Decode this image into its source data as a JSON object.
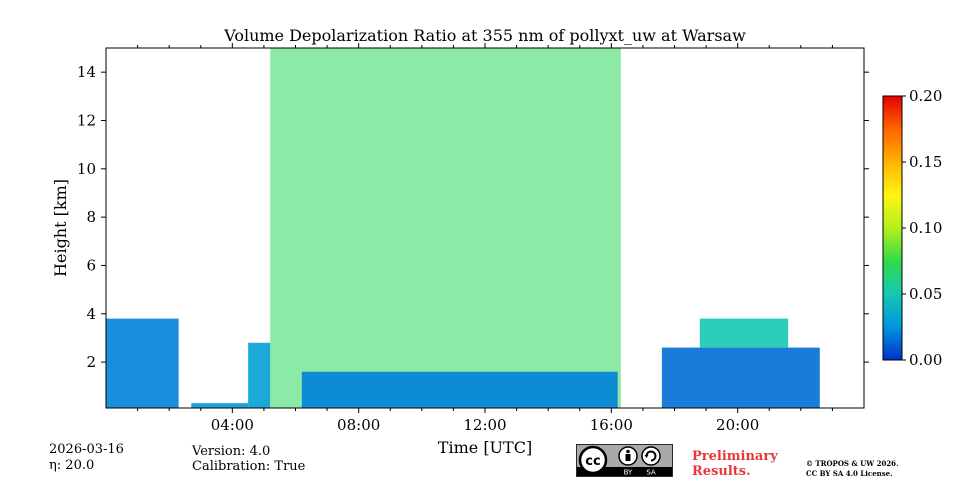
{
  "chart_data": {
    "type": "heatmap",
    "title": "Volume Depolarization Ratio at 355 nm of pollyxt_uw at Warsaw",
    "xlabel": "Time [UTC]",
    "ylabel": "Height [km]",
    "xlim": [
      0,
      24
    ],
    "ylim": [
      0.1,
      15.0
    ],
    "x_ticks": [
      {
        "value": 4,
        "label": "04:00"
      },
      {
        "value": 8,
        "label": "08:00"
      },
      {
        "value": 12,
        "label": "12:00"
      },
      {
        "value": 16,
        "label": "16:00"
      },
      {
        "value": 20,
        "label": "20:00"
      }
    ],
    "y_ticks": [
      {
        "value": 2,
        "label": "2"
      },
      {
        "value": 4,
        "label": "4"
      },
      {
        "value": 6,
        "label": "6"
      },
      {
        "value": 8,
        "label": "8"
      },
      {
        "value": 10,
        "label": "10"
      },
      {
        "value": 12,
        "label": "12"
      },
      {
        "value": 14,
        "label": "14"
      }
    ],
    "colorbar": {
      "min": 0.0,
      "max": 0.2,
      "ticks": [
        {
          "value": 0.0,
          "label": "0.00"
        },
        {
          "value": 0.05,
          "label": "0.05"
        },
        {
          "value": 0.1,
          "label": "0.10"
        },
        {
          "value": 0.15,
          "label": "0.15"
        },
        {
          "value": 0.2,
          "label": "0.20"
        }
      ],
      "colors": [
        "#0032c8",
        "#0096dc",
        "#14c8b4",
        "#32dc46",
        "#b4f01e",
        "#fff514",
        "#ffb400",
        "#ff6400",
        "#e60000"
      ]
    },
    "blocks": [
      {
        "t0": 0.0,
        "t1": 2.3,
        "z0": 0.1,
        "z1": 3.8,
        "level": 0.02
      },
      {
        "t0": 2.7,
        "t1": 4.5,
        "z0": 0.1,
        "z1": 0.3,
        "level": 0.025
      },
      {
        "t0": 4.5,
        "t1": 5.2,
        "z0": 0.1,
        "z1": 2.8,
        "level": 0.03
      },
      {
        "t0": 5.2,
        "t1": 16.3,
        "z0": 0.1,
        "z1": 15.0,
        "level": 0.07
      },
      {
        "t0": 6.2,
        "t1": 16.2,
        "z0": 0.1,
        "z1": 1.6,
        "level": 0.02
      },
      {
        "t0": 17.6,
        "t1": 22.6,
        "z0": 0.1,
        "z1": 2.6,
        "level": 0.015
      },
      {
        "t0": 18.8,
        "t1": 21.6,
        "z0": 2.6,
        "z1": 3.8,
        "level": 0.05
      }
    ],
    "date": "2026-03-16",
    "eta": "η: 20.0",
    "version": "Version: 4.0",
    "calibration": "Calibration: True"
  },
  "license": {
    "cc": "cc",
    "by": "BY",
    "sa": "SA",
    "badge_icon": "cc-by-sa-icon"
  },
  "preliminary": {
    "line1": "Preliminary",
    "line2": "Results."
  },
  "copyright": {
    "line1": "© TROPOS & UW 2026.",
    "line2": "CC BY SA 4.0 License."
  }
}
